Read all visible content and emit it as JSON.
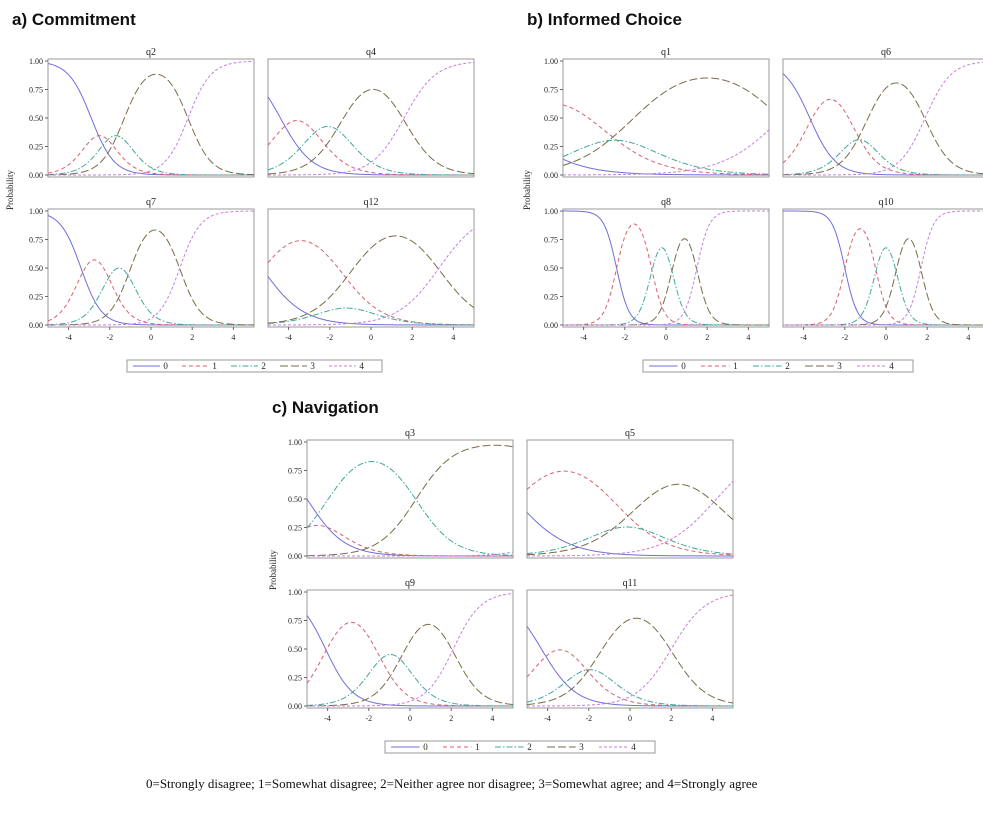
{
  "footnote": "0=Strongly disagree; 1=Somewhat disagree; 2=Neither agree nor disagree; 3=Somewhat agree; and 4=Strongly agree",
  "chart_data": [
    {
      "type": "line",
      "title": "a) Commitment",
      "ylabel": "Probability",
      "xlim": [
        -5,
        5
      ],
      "ylim": [
        0,
        1
      ],
      "xticks": [
        "-4",
        "-2",
        "0",
        "2",
        "4"
      ],
      "yticks": [
        "0.00",
        "0.25",
        "0.50",
        "0.75",
        "1.00"
      ],
      "legend": [
        "0",
        "1",
        "2",
        "3",
        "4"
      ],
      "legend_position": "bottom",
      "panels": [
        {
          "title": "q2",
          "a": 1.8,
          "b": [
            -2.9,
            -2.1,
            -1.3,
            1.8
          ]
        },
        {
          "title": "q4",
          "a": 1.3,
          "b": [
            -4.4,
            -2.8,
            -1.4,
            1.6
          ]
        },
        {
          "title": "q7",
          "a": 2.0,
          "b": [
            -3.4,
            -2.1,
            -1.0,
            1.4
          ]
        },
        {
          "title": "q12",
          "a": 1.0,
          "b": [
            -5.3,
            -1.5,
            -0.9,
            3.3
          ]
        }
      ]
    },
    {
      "type": "line",
      "title": "b) Informed Choice",
      "ylabel": "Probability",
      "xlim": [
        -5,
        5
      ],
      "ylim": [
        0,
        1
      ],
      "xticks": [
        "-4",
        "-2",
        "0",
        "2",
        "4"
      ],
      "yticks": [
        "0.00",
        "0.25",
        "0.50",
        "0.75",
        "1.00"
      ],
      "legend": [
        "0",
        "1",
        "2",
        "3",
        "4"
      ],
      "legend_position": "bottom",
      "panels": [
        {
          "title": "q1",
          "a": 0.7,
          "b": [
            -7.6,
            -3.4,
            -1.6,
            5.6
          ]
        },
        {
          "title": "q6",
          "a": 1.6,
          "b": [
            -3.7,
            -1.7,
            -0.9,
            1.9
          ]
        },
        {
          "title": "q8",
          "a": 3.3,
          "b": [
            -2.4,
            -0.7,
            0.3,
            1.5
          ]
        },
        {
          "title": "q10",
          "a": 3.3,
          "b": [
            -2.0,
            -0.5,
            0.5,
            1.7
          ]
        }
      ]
    },
    {
      "type": "line",
      "title": "c) Navigation",
      "ylabel": "Probability",
      "xlim": [
        -5,
        5
      ],
      "ylim": [
        0,
        1
      ],
      "xticks": [
        "-4",
        "-2",
        "0",
        "2",
        "4"
      ],
      "yticks": [
        "0.00",
        "0.25",
        "0.50",
        "0.75",
        "1.00"
      ],
      "legend": [
        "0",
        "1",
        "2",
        "3",
        "4"
      ],
      "legend_position": "bottom",
      "panels": [
        {
          "title": "q3",
          "a": 1.1,
          "b": [
            -5.0,
            -4.0,
            0.3,
            8.0
          ]
        },
        {
          "title": "q5",
          "a": 0.8,
          "b": [
            -5.6,
            -0.8,
            0.5,
            4.2
          ]
        },
        {
          "title": "q9",
          "a": 1.5,
          "b": [
            -4.1,
            -1.6,
            -0.3,
            2.1
          ]
        },
        {
          "title": "q11",
          "a": 1.2,
          "b": [
            -4.3,
            -2.5,
            -1.4,
            2.0
          ]
        }
      ]
    }
  ],
  "series_styles": [
    {
      "category": "0",
      "color": "#6f6fd9",
      "dash": ""
    },
    {
      "category": "1",
      "color": "#d95f6a",
      "dash": "4,3"
    },
    {
      "category": "2",
      "color": "#3ea99a",
      "dash": "6,2,1.5,2"
    },
    {
      "category": "3",
      "color": "#7a6a48",
      "dash": "8,3"
    },
    {
      "category": "4",
      "color": "#c77fe0",
      "dash": "3,2"
    }
  ]
}
